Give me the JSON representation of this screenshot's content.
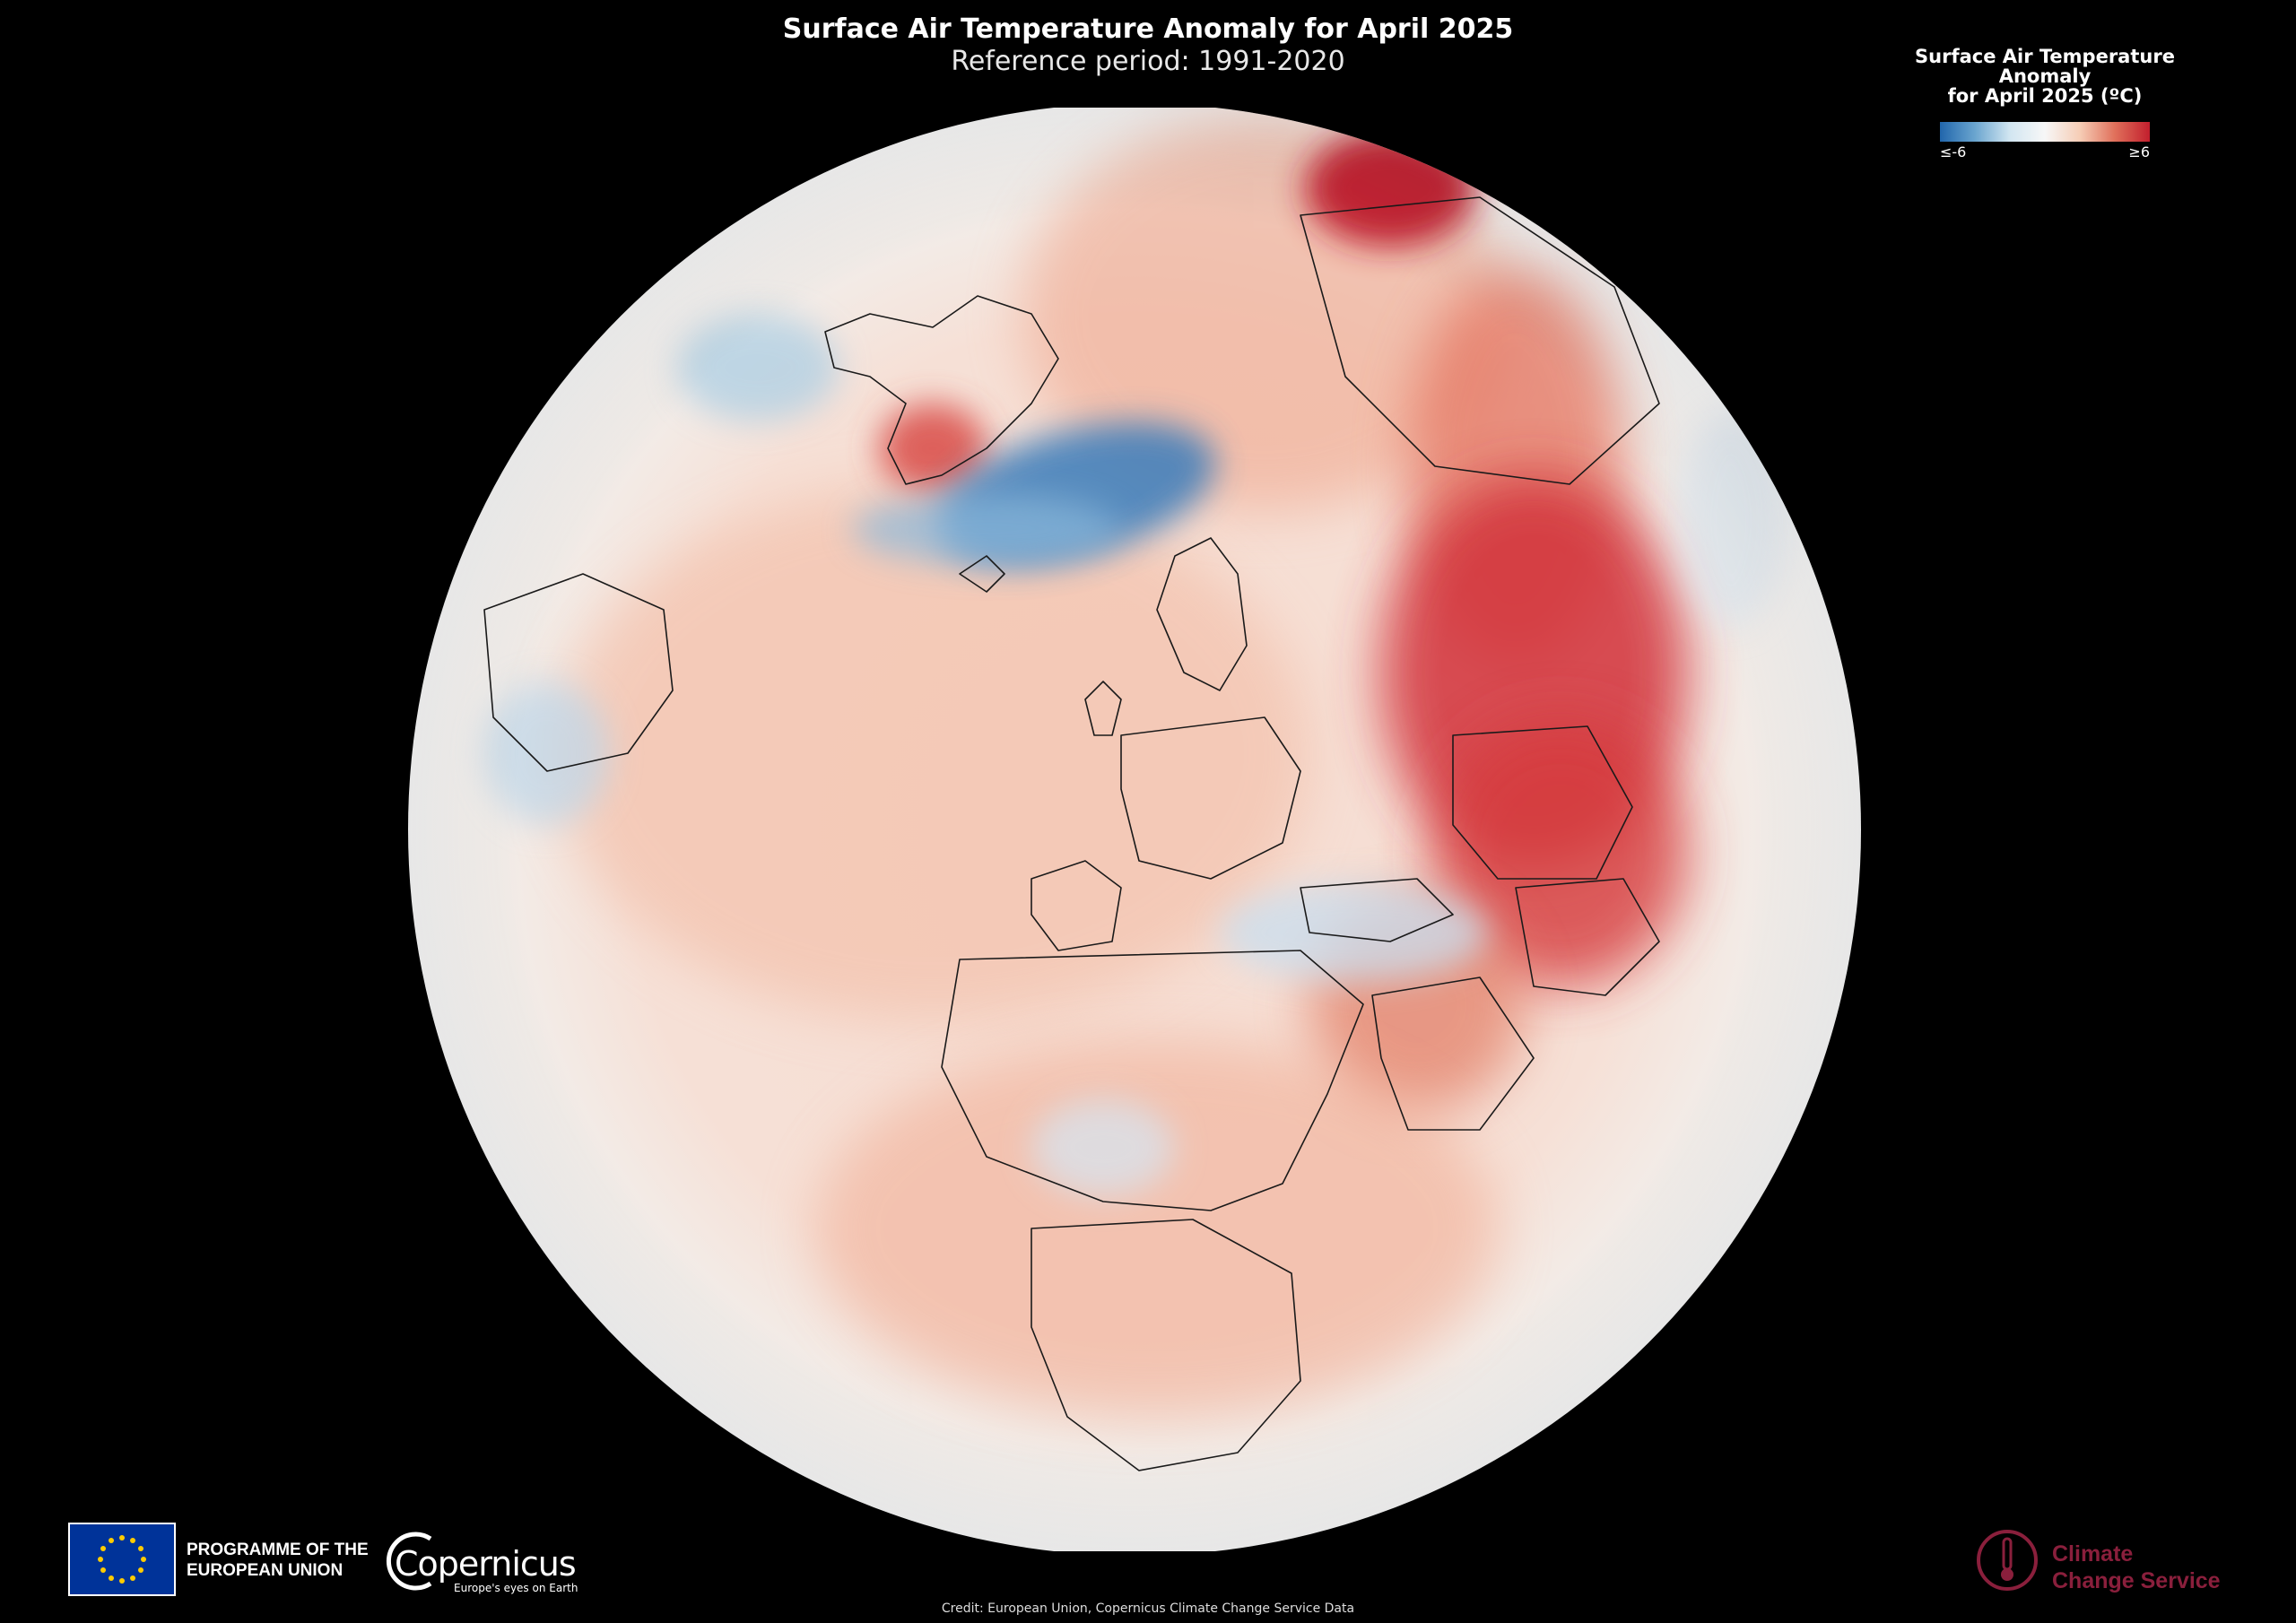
{
  "header": {
    "title": "Surface Air Temperature Anomaly for April 2025",
    "subtitle": "Reference period: 1991-2020"
  },
  "legend": {
    "title_line1": "Surface Air Temperature Anomaly",
    "title_line2": "for April 2025 (ºC)",
    "min_label": "≤-6",
    "max_label": "≥6",
    "colors": [
      "#2166ac",
      "#6aa5cf",
      "#d2e6f1",
      "#f7f7f7",
      "#f6cdb6",
      "#e0705b",
      "#c21f2d"
    ]
  },
  "footer": {
    "eu_line1": "PROGRAMME OF THE",
    "eu_line2": "EUROPEAN UNION",
    "copernicus_name": "Copernicus",
    "copernicus_tagline": "Europe's eyes on Earth",
    "c3s_line1": "Climate",
    "c3s_line2": "Change Service",
    "credit": "Credit: European Union, Copernicus Climate Change Service Data"
  },
  "colors": {
    "background": "#000000",
    "warm_anomaly": "#c21f2d",
    "cold_anomaly": "#2166ac",
    "neutral": "#f7f7f7",
    "c3s_brand": "#8a1f3c",
    "eu_blue": "#003399",
    "eu_star": "#ffcc00"
  }
}
